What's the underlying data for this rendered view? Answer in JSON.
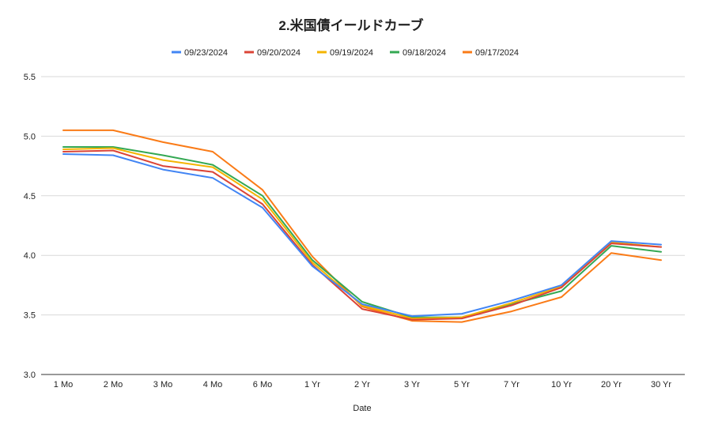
{
  "chart_data": {
    "type": "line",
    "title": "2.米国債イールドカーブ",
    "xlabel": "Date",
    "ylabel": "",
    "ylim": [
      3.0,
      5.5
    ],
    "yticks": [
      "3.0",
      "3.5",
      "4.0",
      "4.5",
      "5.0",
      "5.5"
    ],
    "grid": true,
    "legend_position": "top",
    "categories": [
      "1 Mo",
      "2 Mo",
      "3 Mo",
      "4 Mo",
      "6 Mo",
      "1 Yr",
      "2 Yr",
      "3 Yr",
      "5 Yr",
      "7 Yr",
      "10 Yr",
      "20 Yr",
      "30 Yr"
    ],
    "series": [
      {
        "name": "09/23/2024",
        "color": "#4285f4",
        "values": [
          4.85,
          4.84,
          4.72,
          4.65,
          4.4,
          3.91,
          3.59,
          3.49,
          3.51,
          3.62,
          3.75,
          4.12,
          4.09
        ]
      },
      {
        "name": "09/20/2024",
        "color": "#db4437",
        "values": [
          4.87,
          4.88,
          4.75,
          4.7,
          4.43,
          3.92,
          3.55,
          3.46,
          3.47,
          3.58,
          3.73,
          4.1,
          4.07
        ]
      },
      {
        "name": "09/19/2024",
        "color": "#f4b400",
        "values": [
          4.89,
          4.9,
          4.8,
          4.74,
          4.47,
          3.94,
          3.58,
          3.47,
          3.48,
          3.6,
          3.74,
          4.11,
          4.07
        ]
      },
      {
        "name": "09/18/2024",
        "color": "#34a853",
        "values": [
          4.91,
          4.91,
          4.84,
          4.76,
          4.5,
          3.96,
          3.61,
          3.48,
          3.48,
          3.59,
          3.7,
          4.08,
          4.03
        ]
      },
      {
        "name": "09/17/2024",
        "color": "#fa7b17",
        "values": [
          5.05,
          5.05,
          4.95,
          4.87,
          4.55,
          3.99,
          3.57,
          3.45,
          3.44,
          3.53,
          3.65,
          4.02,
          3.96
        ]
      }
    ]
  }
}
